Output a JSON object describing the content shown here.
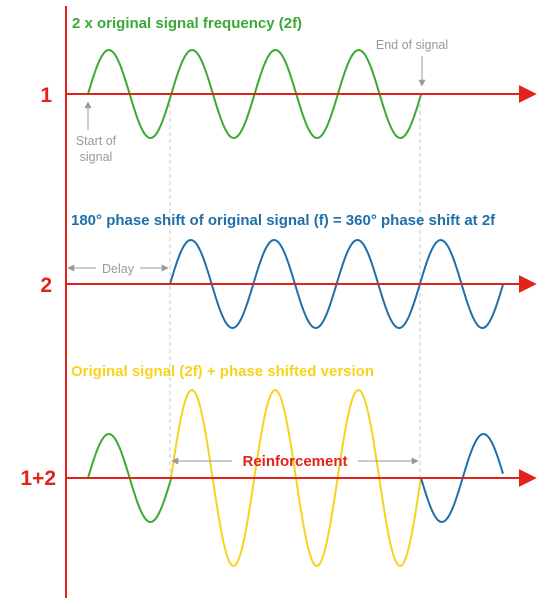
{
  "colors": {
    "axis": "#e2231a",
    "green": "#3aa935",
    "blue": "#1f6fa8",
    "yellow": "#f7d21e",
    "note": "#999999",
    "guide": "#c8c8c8"
  },
  "rows": [
    {
      "label": "1",
      "title": "2 x original signal frequency (2f)",
      "title_color": "#3aa935"
    },
    {
      "label": "2",
      "title": "180° phase shift of original signal (f) = 360° phase shift at 2f",
      "title_color": "#1f6fa8"
    },
    {
      "label": "1+2",
      "title": "Original signal (2f) + phase shifted version",
      "title_color": "#f7d21e"
    }
  ],
  "annotations": {
    "end_of_signal": "End of signal",
    "start_of_signal_line1": "Start of",
    "start_of_signal_line2": "signal",
    "delay": "Delay",
    "reinforcement": "Reinforcement"
  }
}
